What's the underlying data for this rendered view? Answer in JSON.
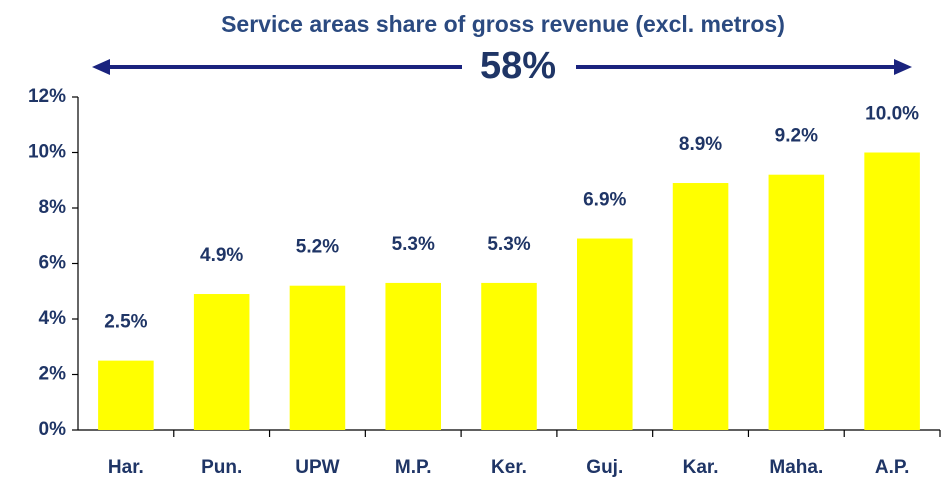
{
  "chart_data": {
    "type": "bar",
    "title": "Service areas share of gross revenue (excl. metros)",
    "annotation": "58%",
    "categories": [
      "Har.",
      "Pun.",
      "UPW",
      "M.P.",
      "Ker.",
      "Guj.",
      "Kar.",
      "Maha.",
      "A.P."
    ],
    "values": [
      2.5,
      4.9,
      5.2,
      5.3,
      5.3,
      6.9,
      8.9,
      9.2,
      10.0
    ],
    "value_labels": [
      "2.5%",
      "4.9%",
      "5.2%",
      "5.3%",
      "5.3%",
      "6.9%",
      "8.9%",
      "9.2%",
      "10.0%"
    ],
    "color": "#ffff00",
    "ylim": [
      0,
      12
    ],
    "yticks": [
      {
        "value": 0,
        "label": "0%"
      },
      {
        "value": 2,
        "label": "2%"
      },
      {
        "value": 4,
        "label": "4%"
      },
      {
        "value": 6,
        "label": "6%"
      },
      {
        "value": 8,
        "label": "8%"
      },
      {
        "value": 10,
        "label": "10%"
      },
      {
        "value": 12,
        "label": "12%"
      }
    ],
    "grid": false
  }
}
